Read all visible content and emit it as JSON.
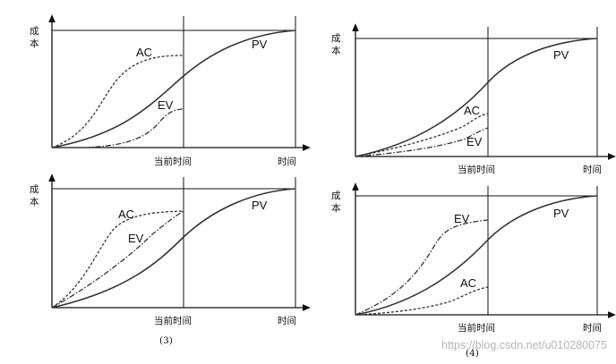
{
  "panels": [
    {
      "id": "top-left",
      "y_label": "成\n本",
      "x_current_label": "当前时间",
      "x_end_label": "时间",
      "number_label": "",
      "curves": [
        {
          "label": "PV",
          "style": "solid"
        },
        {
          "label": "AC",
          "style": "dashed"
        },
        {
          "label": "EV",
          "style": "dash-dot"
        }
      ]
    },
    {
      "id": "top-right",
      "y_label": "成\n本",
      "x_current_label": "当前时间",
      "x_end_label": "时间",
      "number_label": "",
      "curves": [
        {
          "label": "PV",
          "style": "solid"
        },
        {
          "label": "AC",
          "style": "dashed"
        },
        {
          "label": "EV",
          "style": "dash-dot"
        }
      ]
    },
    {
      "id": "bottom-left",
      "y_label": "成\n本",
      "x_current_label": "当前时间",
      "x_end_label": "时间",
      "number_label": "(3)",
      "curves": [
        {
          "label": "PV",
          "style": "solid"
        },
        {
          "label": "AC",
          "style": "dashed"
        },
        {
          "label": "EV",
          "style": "dash-dot"
        }
      ]
    },
    {
      "id": "bottom-right",
      "y_label": "成\n本",
      "x_current_label": "当前时间",
      "x_end_label": "时间",
      "number_label": "(4)",
      "curves": [
        {
          "label": "PV",
          "style": "solid"
        },
        {
          "label": "EV",
          "style": "dash-dot"
        },
        {
          "label": "AC",
          "style": "dashed"
        }
      ]
    }
  ],
  "watermark": "https://blog.csdn.net/u010280075"
}
